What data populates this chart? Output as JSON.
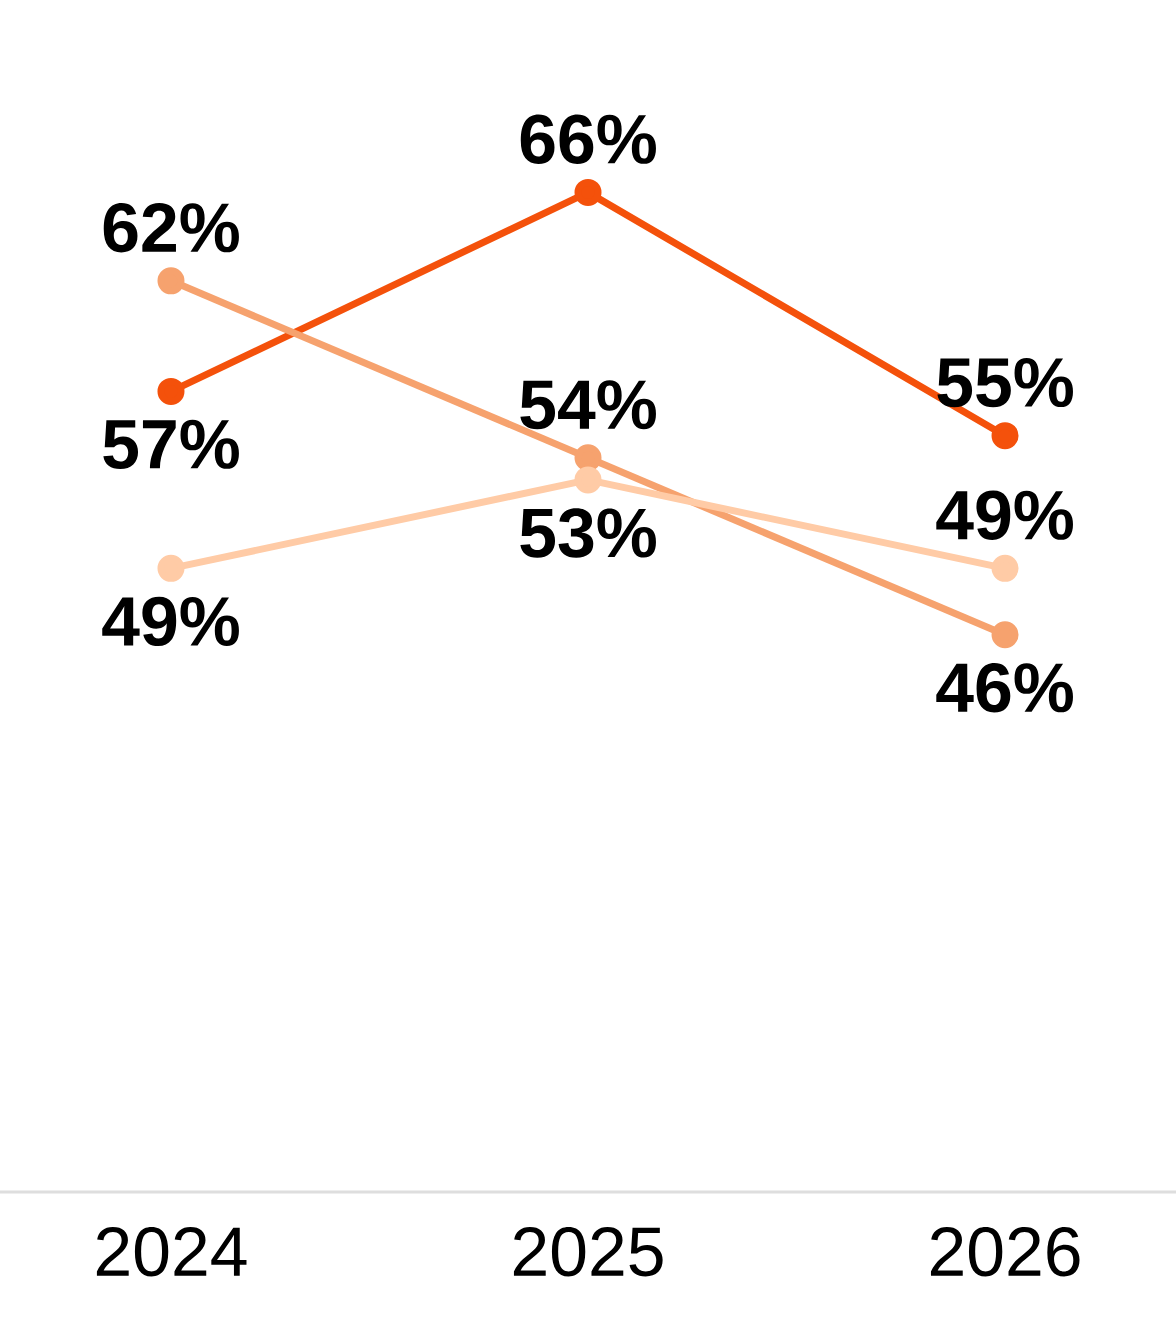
{
  "chart_data": {
    "type": "line",
    "categories": [
      "2024",
      "2025",
      "2026"
    ],
    "series": [
      {
        "color": "#f4510b",
        "values": [
          57,
          66,
          55
        ],
        "value_labels": [
          "57%",
          "66%",
          "55%"
        ]
      },
      {
        "color": "#f6a26e",
        "values": [
          62,
          54,
          46
        ],
        "value_labels": [
          "62%",
          "54%",
          "46%"
        ]
      },
      {
        "color": "#ffcba6",
        "values": [
          49,
          53,
          49
        ],
        "value_labels": [
          "49%",
          "53%",
          "49%"
        ]
      }
    ],
    "marker": "circle",
    "line_style": "solid",
    "tick_labels": "x"
  }
}
